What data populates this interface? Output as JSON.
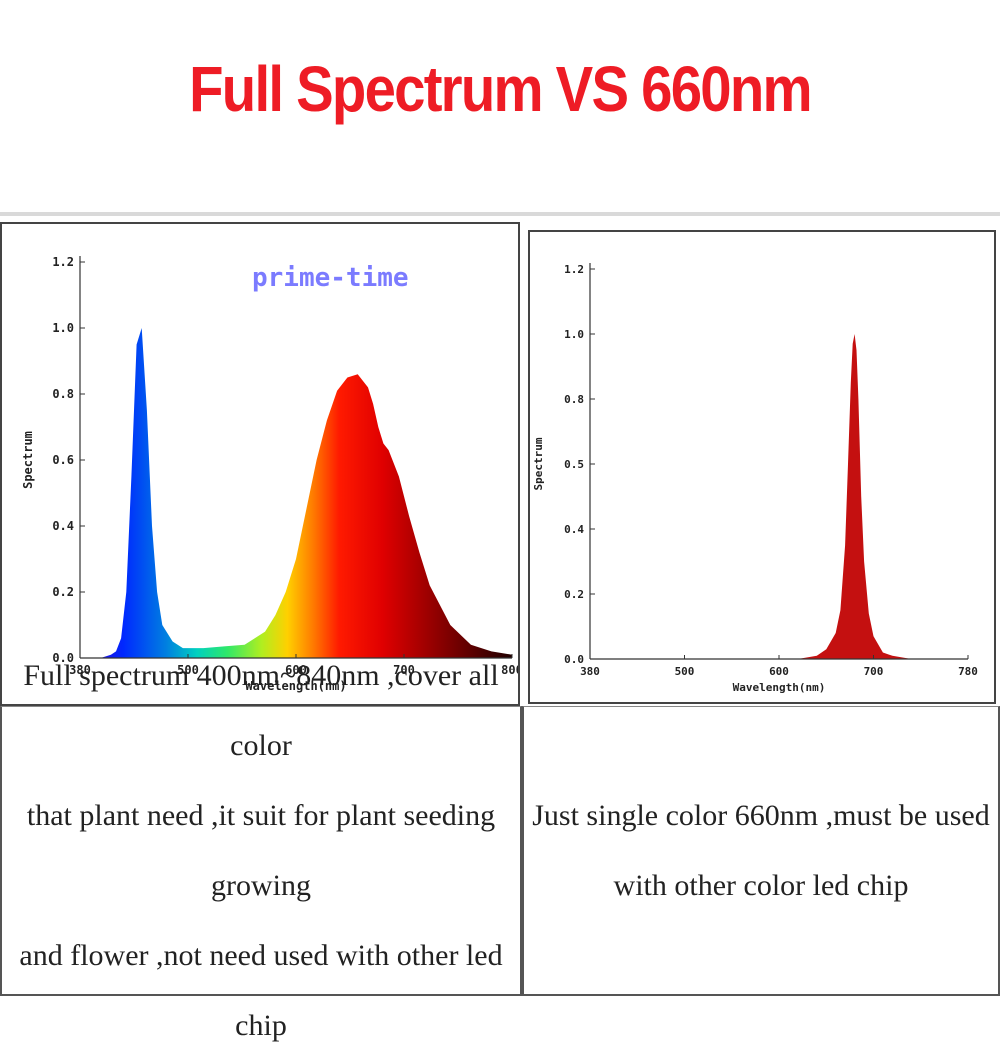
{
  "title": "Full Spectrum VS 660nm",
  "colors": {
    "title": "#ee1c25",
    "watermark": "#7b7bff",
    "axis": "#333333"
  },
  "chart_data": [
    {
      "type": "area",
      "watermark": "prime-time",
      "xlabel": "Wavelength(nm)",
      "ylabel": "Spectrum",
      "xlim": [
        380,
        800
      ],
      "ylim": [
        0,
        1.2
      ],
      "xticks": [
        "380",
        "500",
        "600",
        "700",
        "800"
      ],
      "yticks": [
        "0.0",
        "0.2",
        "0.4",
        "0.6",
        "0.8",
        "1.0",
        "1.2"
      ],
      "fill": "rainbow gradient (wavelength colored)",
      "series": [
        {
          "x": [
            380,
            400,
            410,
            415,
            420,
            425,
            430,
            435,
            440,
            445,
            450,
            455,
            460,
            470,
            480,
            500,
            520,
            540,
            560,
            570,
            580,
            590,
            600,
            610,
            620,
            630,
            640,
            650,
            660,
            665,
            670,
            675,
            680,
            690,
            700,
            710,
            720,
            740,
            760,
            780,
            800
          ],
          "y": [
            0.0,
            0.0,
            0.01,
            0.02,
            0.06,
            0.2,
            0.55,
            0.95,
            1.0,
            0.75,
            0.4,
            0.2,
            0.1,
            0.05,
            0.03,
            0.03,
            0.035,
            0.04,
            0.08,
            0.13,
            0.2,
            0.3,
            0.45,
            0.6,
            0.72,
            0.81,
            0.85,
            0.86,
            0.82,
            0.77,
            0.7,
            0.65,
            0.63,
            0.55,
            0.43,
            0.32,
            0.22,
            0.1,
            0.04,
            0.02,
            0.01
          ]
        }
      ]
    },
    {
      "type": "area",
      "xlabel": "Wavelength(nm)",
      "ylabel": "Spectrum",
      "xlim": [
        380,
        780
      ],
      "ylim": [
        0,
        1.2
      ],
      "xticks": [
        "380",
        "500",
        "600",
        "700",
        "780"
      ],
      "yticks": [
        "0.0",
        "0.2",
        "0.4",
        "0.5",
        "0.8",
        "1.0",
        "1.2"
      ],
      "fill": "#c41010",
      "series": [
        {
          "x": [
            380,
            600,
            620,
            630,
            640,
            645,
            650,
            653,
            656,
            658,
            660,
            662,
            664,
            667,
            670,
            675,
            680,
            690,
            700,
            720,
            780
          ],
          "y": [
            0.0,
            0.0,
            0.01,
            0.03,
            0.08,
            0.15,
            0.35,
            0.6,
            0.85,
            0.97,
            1.0,
            0.95,
            0.8,
            0.5,
            0.3,
            0.14,
            0.07,
            0.02,
            0.01,
            0.0,
            0.0
          ]
        }
      ]
    }
  ],
  "descriptions": {
    "left_lines": [
      "Full spectrum 400nm~840nm ,cover all color",
      "that plant need ,it suit for plant seeding growing",
      "and flower ,not need used with other led chip"
    ],
    "right_lines": [
      "Just single color 660nm ,must be used",
      "with other color led chip"
    ]
  }
}
